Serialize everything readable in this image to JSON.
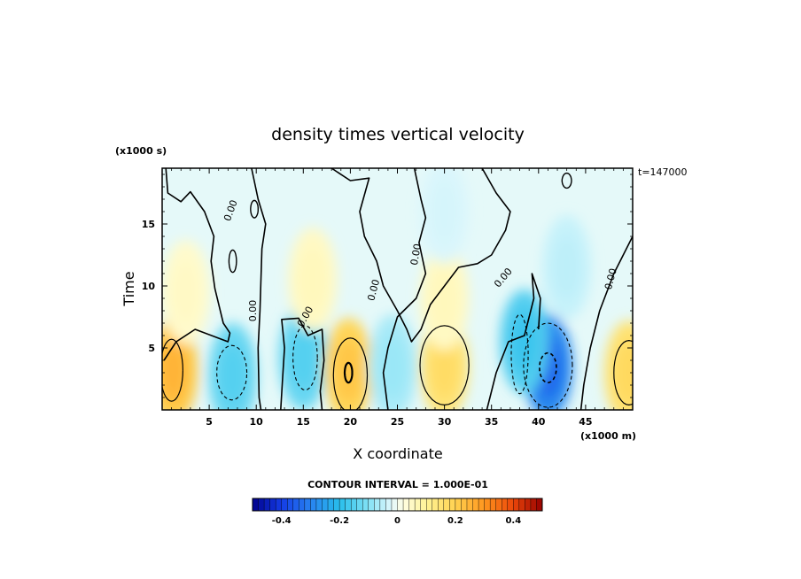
{
  "chart_data": {
    "type": "heatmap",
    "title": "density times vertical velocity",
    "xlabel": "X coordinate",
    "ylabel": "Time",
    "x_units": "(x1000 m)",
    "y_units": "(x1000 s)",
    "annotation": "t=147000",
    "contour_interval_text": "CONTOUR INTERVAL = 1.000E-01",
    "xlim": [
      0,
      50
    ],
    "ylim": [
      0,
      19.5
    ],
    "x_ticks": [
      5,
      10,
      15,
      20,
      25,
      30,
      35,
      40,
      45
    ],
    "y_ticks": [
      5,
      10,
      15
    ],
    "zero_contour_label": "0.00",
    "colorbar": {
      "range": [
        -0.5,
        0.5
      ],
      "levels": 50,
      "ticks": [
        -0.4,
        -0.2,
        0,
        0.2,
        0.4
      ],
      "tick_labels": [
        "-0.4",
        "-0.2",
        "0",
        "0.2",
        "0.4"
      ]
    },
    "features": [
      {
        "x": 1.2,
        "y": 3.2,
        "value": 0.25
      },
      {
        "x": 7.5,
        "y": 2.8,
        "value": -0.15
      },
      {
        "x": 15.0,
        "y": 4.2,
        "value": -0.15
      },
      {
        "x": 19.8,
        "y": 3.2,
        "value": 0.22
      },
      {
        "x": 24.5,
        "y": 3.5,
        "value": -0.08
      },
      {
        "x": 30.0,
        "y": 3.5,
        "value": 0.17
      },
      {
        "x": 41.0,
        "y": 3.5,
        "value": -0.34
      },
      {
        "x": 38.5,
        "y": 5.5,
        "value": -0.18
      },
      {
        "x": 49.6,
        "y": 3.0,
        "value": 0.18
      },
      {
        "x": 16.0,
        "y": 10.5,
        "value": 0.06
      },
      {
        "x": 2.5,
        "y": 9.5,
        "value": 0.05
      },
      {
        "x": 30.0,
        "y": 9.0,
        "value": 0.06
      },
      {
        "x": 43.0,
        "y": 11.5,
        "value": -0.05
      },
      {
        "x": 30.0,
        "y": 16.0,
        "value": -0.03
      }
    ]
  }
}
